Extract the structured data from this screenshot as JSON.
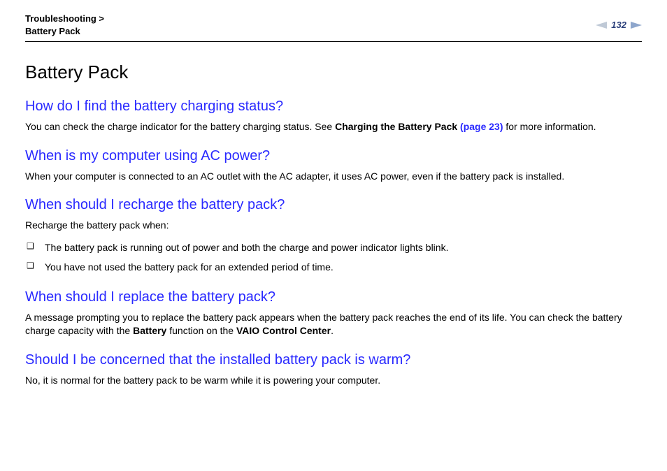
{
  "header": {
    "breadcrumb_line1": "Troubleshooting >",
    "breadcrumb_line2": "Battery Pack",
    "page_number": "132"
  },
  "title": "Battery Pack",
  "sections": [
    {
      "heading": "How do I find the battery charging status?",
      "body_pre": "You can check the charge indicator for the battery charging status. See ",
      "bold1": "Charging the Battery Pack ",
      "link": "(page 23)",
      "body_post": " for more information."
    },
    {
      "heading": "When is my computer using AC power?",
      "body": "When your computer is connected to an AC outlet with the AC adapter, it uses AC power, even if the battery pack is installed."
    },
    {
      "heading": "When should I recharge the battery pack?",
      "intro": "Recharge the battery pack when:",
      "bullets": [
        "The battery pack is running out of power and both the charge and power indicator lights blink.",
        "You have not used the battery pack for an extended period of time."
      ]
    },
    {
      "heading": "When should I replace the battery pack?",
      "body_pre": "A message prompting you to replace the battery pack appears when the battery pack reaches the end of its life. You can check the battery charge capacity with the ",
      "bold1": "Battery",
      "body_mid": " function on the ",
      "bold2": "VAIO Control Center",
      "body_post": "."
    },
    {
      "heading": "Should I be concerned that the installed battery pack is warm?",
      "body": "No, it is normal for the battery pack to be warm while it is powering your computer."
    }
  ],
  "colors": {
    "heading_blue": "#2a2aff",
    "pagenum_blue": "#2a3f7a",
    "arrow_light": "#bfc9d6",
    "arrow_dark": "#8ea6cc",
    "text": "#000000",
    "bg": "#ffffff"
  }
}
